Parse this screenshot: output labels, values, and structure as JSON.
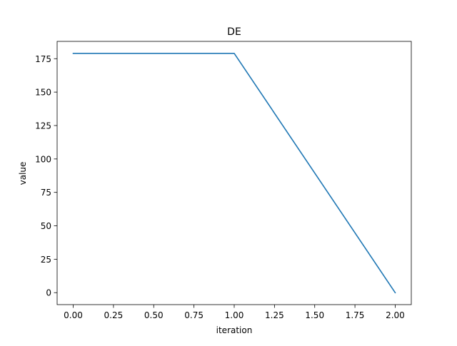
{
  "chart_data": {
    "type": "line",
    "title": "DE",
    "xlabel": "iteration",
    "ylabel": "value",
    "xlim": [
      -0.1,
      2.1
    ],
    "ylim": [
      -8.95,
      187.95
    ],
    "x_ticks": [
      0.0,
      0.25,
      0.5,
      0.75,
      1.0,
      1.25,
      1.5,
      1.75,
      2.0
    ],
    "x_tick_labels": [
      "0.00",
      "0.25",
      "0.50",
      "0.75",
      "1.00",
      "1.25",
      "1.50",
      "1.75",
      "2.00"
    ],
    "y_ticks": [
      0,
      25,
      50,
      75,
      100,
      125,
      150,
      175
    ],
    "y_tick_labels": [
      "0",
      "25",
      "50",
      "75",
      "100",
      "125",
      "150",
      "175"
    ],
    "grid": false,
    "series": [
      {
        "x": [
          0,
          1,
          2
        ],
        "y": [
          179,
          179,
          0
        ],
        "color": "#1f77b4"
      }
    ]
  }
}
